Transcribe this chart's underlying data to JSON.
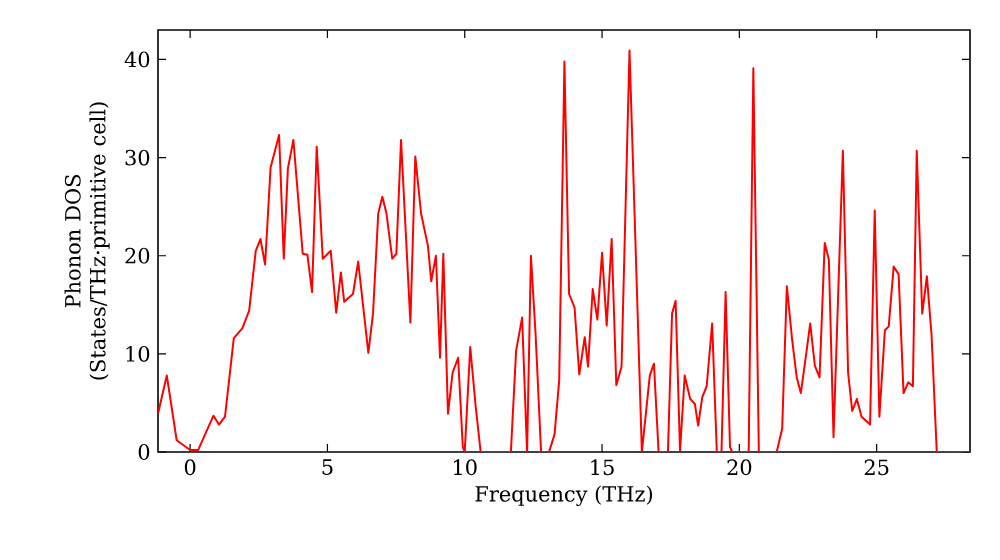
{
  "chart_data": {
    "type": "line",
    "xlabel": "Frequency (THz)",
    "ylabel": "Phonon DOS (States/THz·primitive cell)",
    "xlim": [
      -1.17,
      28.4
    ],
    "ylim": [
      0,
      43
    ],
    "xticks": [
      0,
      5,
      10,
      15,
      20,
      25
    ],
    "yticks": [
      0,
      10,
      20,
      30,
      40
    ],
    "grid": false,
    "marker": "none",
    "line_style": "solid",
    "series": [
      {
        "color": "#ff0000",
        "x": [
          -1.17,
          -0.85,
          -0.49,
          0,
          0.29,
          0.85,
          1.05,
          1.27,
          1.59,
          1.9,
          2.15,
          2.39,
          2.56,
          2.73,
          2.93,
          3.24,
          3.41,
          3.56,
          3.76,
          4.1,
          4.27,
          4.44,
          4.61,
          4.83,
          5.12,
          5.32,
          5.49,
          5.61,
          5.93,
          6.12,
          6.49,
          6.66,
          6.85,
          7.0,
          7.15,
          7.36,
          7.51,
          7.68,
          8.02,
          8.2,
          8.41,
          8.66,
          8.78,
          8.95,
          9.1,
          9.22,
          9.39,
          9.56,
          9.76,
          9.93,
          10.0,
          10.2,
          10.4,
          10.58,
          11.68,
          11.87,
          12.09,
          12.27,
          12.41,
          12.58,
          12.78,
          13.07,
          13.27,
          13.44,
          13.63,
          13.8,
          14.0,
          14.17,
          14.37,
          14.49,
          14.66,
          14.83,
          15.0,
          15.17,
          15.35,
          15.52,
          15.71,
          16.0,
          16.2,
          16.45,
          16.74,
          16.89,
          17.06,
          17.4,
          17.55,
          17.68,
          17.84,
          18.01,
          18.21,
          18.38,
          18.5,
          18.65,
          18.81,
          19.01,
          19.18,
          19.35,
          19.5,
          19.66,
          19.74,
          20.34,
          20.51,
          20.71,
          21.36,
          21.56,
          21.73,
          21.92,
          22.09,
          22.24,
          22.42,
          22.58,
          22.75,
          22.92,
          23.11,
          23.26,
          23.43,
          23.77,
          23.96,
          24.11,
          24.28,
          24.45,
          24.6,
          24.76,
          24.93,
          25.1,
          25.3,
          25.44,
          25.62,
          25.8,
          25.98,
          26.15,
          26.32,
          26.46,
          26.66,
          26.83,
          27.0,
          27.19,
          28.4
        ],
        "values": [
          3.9,
          7.8,
          1.2,
          0.2,
          0.2,
          3.7,
          2.8,
          3.6,
          11.6,
          12.6,
          14.4,
          20.5,
          21.7,
          19.1,
          29.0,
          32.3,
          19.7,
          28.9,
          31.8,
          20.2,
          20.1,
          16.3,
          31.1,
          19.7,
          20.5,
          14.2,
          18.3,
          15.3,
          16.1,
          19.4,
          10.1,
          14.1,
          24.3,
          26.0,
          24.3,
          19.7,
          20.2,
          31.8,
          13.2,
          30.1,
          24.3,
          21.0,
          17.4,
          20.0,
          9.6,
          20.2,
          3.9,
          8.1,
          9.6,
          0.5,
          0,
          10.7,
          4.6,
          0,
          0,
          10.3,
          13.7,
          0,
          20.0,
          12.0,
          0,
          0,
          1.8,
          7.3,
          39.8,
          16.1,
          14.7,
          7.9,
          11.7,
          8.7,
          16.6,
          13.5,
          20.3,
          12.9,
          21.7,
          6.8,
          8.7,
          40.9,
          22.9,
          0,
          7.8,
          9.0,
          0,
          0,
          14.1,
          15.4,
          0.1,
          7.8,
          5.4,
          4.9,
          2.7,
          5.6,
          6.7,
          13.1,
          0,
          0,
          16.3,
          0.5,
          0,
          0,
          39.1,
          0,
          0,
          2.4,
          16.9,
          11.5,
          7.6,
          6.0,
          9.7,
          13.1,
          8.8,
          7.6,
          21.3,
          19.6,
          1.5,
          30.7,
          8.1,
          4.2,
          5.4,
          3.6,
          3.2,
          2.8,
          24.6,
          3.6,
          12.4,
          12.8,
          18.9,
          18.1,
          6.0,
          7.1,
          6.7,
          30.7,
          14.1,
          17.9,
          11.9,
          0,
          0
        ]
      }
    ]
  }
}
